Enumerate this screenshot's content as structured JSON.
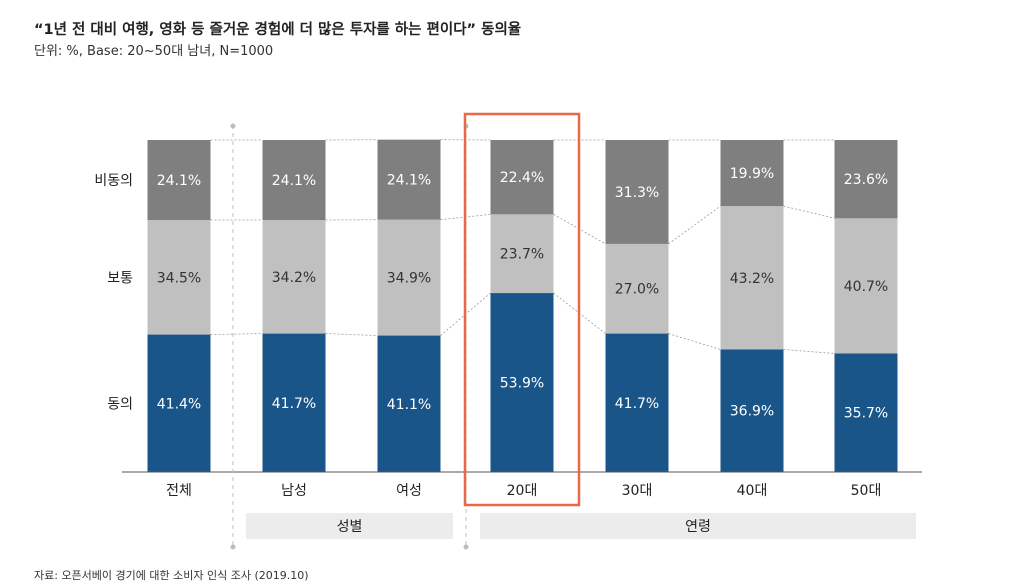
{
  "chart_data": {
    "type": "bar",
    "stacked": true,
    "title": "“1년 전 대비 여행, 영화 등 즐거운 경험에 더 많은 투자를 하는 편이다” 동의율",
    "subtitle": "단위: %, Base: 20~50대 남녀, N=1000",
    "categories": [
      "전체",
      "남성",
      "여성",
      "20대",
      "30대",
      "40대",
      "50대"
    ],
    "series": [
      {
        "name": "동의",
        "color": "#1a5589",
        "labels": [
          "41.4%",
          "41.7%",
          "41.1%",
          "53.9%",
          "41.7%",
          "36.9%",
          "35.7%"
        ],
        "values": [
          41.4,
          41.7,
          41.1,
          53.9,
          41.7,
          36.9,
          35.7
        ]
      },
      {
        "name": "보통",
        "color": "#c0c0c0",
        "labels": [
          "34.5%",
          "34.2%",
          "34.9%",
          "23.7%",
          "27.0%",
          "43.2%",
          "40.7%"
        ],
        "values": [
          34.5,
          34.2,
          34.9,
          23.7,
          27.0,
          43.2,
          40.7
        ]
      },
      {
        "name": "비동의",
        "color": "#7f7f7f",
        "labels": [
          "24.1%",
          "24.1%",
          "24.1%",
          "22.4%",
          "31.3%",
          "19.9%",
          "23.6%"
        ],
        "values": [
          24.1,
          24.1,
          24.1,
          22.4,
          31.3,
          19.9,
          23.6
        ]
      }
    ],
    "groups": [
      {
        "label": "성별",
        "categories": [
          "남성",
          "여성"
        ]
      },
      {
        "label": "연령",
        "categories": [
          "20대",
          "30대",
          "40대",
          "50대"
        ]
      }
    ],
    "highlight": "20대",
    "highlight_color": "#e8684a",
    "ylim": [
      0,
      100
    ],
    "source": "자료: 오픈서베이 경기에 대한 소비자 인식 조사 (2019.10)"
  }
}
